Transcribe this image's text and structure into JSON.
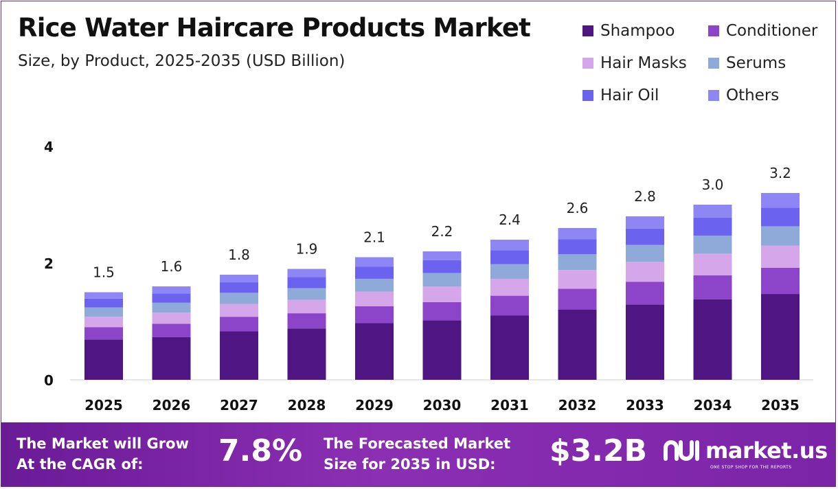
{
  "header": {
    "title": "Rice Water Haircare Products Market",
    "subtitle": "Size, by Product, 2025-2035 (USD Billion)"
  },
  "legend": {
    "items": [
      {
        "label": "Shampoo",
        "color": "#4e1583"
      },
      {
        "label": "Conditioner",
        "color": "#8c45c8"
      },
      {
        "label": "Hair Masks",
        "color": "#d5a6ea"
      },
      {
        "label": "Serums",
        "color": "#8fa9d9"
      },
      {
        "label": "Hair Oil",
        "color": "#6b63f0"
      },
      {
        "label": "Others",
        "color": "#8e86f5"
      }
    ]
  },
  "chart_data": {
    "type": "bar",
    "stacked": true,
    "categories": [
      "2025",
      "2026",
      "2027",
      "2028",
      "2029",
      "2030",
      "2031",
      "2032",
      "2033",
      "2034",
      "2035"
    ],
    "series": [
      {
        "name": "Shampoo",
        "values": [
          0.69,
          0.73,
          0.83,
          0.88,
          0.97,
          1.02,
          1.1,
          1.2,
          1.29,
          1.38,
          1.47
        ]
      },
      {
        "name": "Conditioner",
        "values": [
          0.21,
          0.23,
          0.25,
          0.26,
          0.29,
          0.31,
          0.34,
          0.36,
          0.39,
          0.41,
          0.45
        ]
      },
      {
        "name": "Hair Masks",
        "values": [
          0.18,
          0.19,
          0.22,
          0.23,
          0.25,
          0.27,
          0.29,
          0.32,
          0.34,
          0.37,
          0.38
        ]
      },
      {
        "name": "Serums",
        "values": [
          0.16,
          0.17,
          0.19,
          0.2,
          0.22,
          0.23,
          0.25,
          0.27,
          0.29,
          0.31,
          0.33
        ]
      },
      {
        "name": "Hair Oil",
        "values": [
          0.15,
          0.16,
          0.18,
          0.19,
          0.21,
          0.22,
          0.24,
          0.26,
          0.28,
          0.31,
          0.32
        ]
      },
      {
        "name": "Others",
        "values": [
          0.11,
          0.12,
          0.13,
          0.14,
          0.16,
          0.15,
          0.18,
          0.19,
          0.21,
          0.22,
          0.25
        ]
      }
    ],
    "totals": [
      "1.5",
      "1.6",
      "1.8",
      "1.9",
      "2.1",
      "2.2",
      "2.4",
      "2.6",
      "2.8",
      "3.0",
      "3.2"
    ],
    "yticks": [
      0,
      2,
      4
    ],
    "ylim": [
      0,
      4
    ],
    "title": "Rice Water Haircare Products Market",
    "xlabel": "",
    "ylabel": ""
  },
  "footer": {
    "cagr_label": "The Market will Grow\nAt the CAGR of:",
    "cagr_value": "7.8%",
    "forecast_label": "The Forecasted Market\nSize for 2035 in USD:",
    "forecast_value": "$3.2B",
    "brand_name": "market.us",
    "brand_tagline": "ONE STOP SHOP FOR THE REPORTS"
  }
}
